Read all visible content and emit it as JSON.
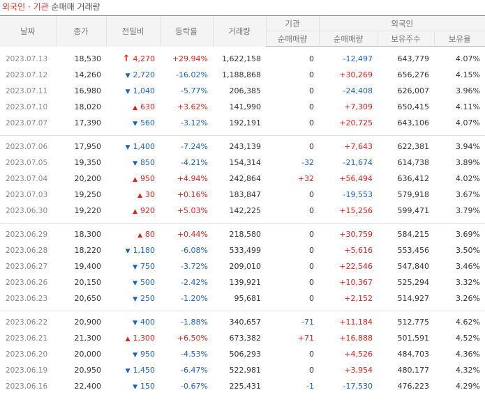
{
  "title": {
    "part1": "외국인",
    "dot": "·",
    "part2": "기관",
    "rest": "순매매 거래량"
  },
  "headers": {
    "date": "날짜",
    "close": "종가",
    "change": "전일비",
    "rate": "등락률",
    "volume": "거래량",
    "inst": "기관",
    "foreign": "외국인",
    "inst_net": "순매매량",
    "foreign_net": "순매매량",
    "foreign_hold": "보유주수",
    "foreign_ratio": "보유율"
  },
  "groups": [
    [
      {
        "date": "2023.07.13",
        "close": "18,530",
        "dir": "upper",
        "chg": "4,270",
        "rate": "+29.94%",
        "vol": "1,622,158",
        "inst": "0",
        "frg": "-12,497",
        "hold": "643,779",
        "ratio": "4.07%"
      },
      {
        "date": "2023.07.12",
        "close": "14,260",
        "dir": "down",
        "chg": "2,720",
        "rate": "-16.02%",
        "vol": "1,188,868",
        "inst": "0",
        "frg": "+30,269",
        "hold": "656,276",
        "ratio": "4.15%"
      },
      {
        "date": "2023.07.11",
        "close": "16,980",
        "dir": "down",
        "chg": "1,040",
        "rate": "-5.77%",
        "vol": "206,385",
        "inst": "0",
        "frg": "-24,408",
        "hold": "626,007",
        "ratio": "3.96%"
      },
      {
        "date": "2023.07.10",
        "close": "18,020",
        "dir": "up",
        "chg": "630",
        "rate": "+3.62%",
        "vol": "141,990",
        "inst": "0",
        "frg": "+7,309",
        "hold": "650,415",
        "ratio": "4.11%"
      },
      {
        "date": "2023.07.07",
        "close": "17,390",
        "dir": "down",
        "chg": "560",
        "rate": "-3.12%",
        "vol": "192,191",
        "inst": "0",
        "frg": "+20,725",
        "hold": "643,106",
        "ratio": "4.07%"
      }
    ],
    [
      {
        "date": "2023.07.06",
        "close": "17,950",
        "dir": "down",
        "chg": "1,400",
        "rate": "-7.24%",
        "vol": "243,139",
        "inst": "0",
        "frg": "+7,643",
        "hold": "622,381",
        "ratio": "3.94%"
      },
      {
        "date": "2023.07.05",
        "close": "19,350",
        "dir": "down",
        "chg": "850",
        "rate": "-4.21%",
        "vol": "154,314",
        "inst": "-32",
        "frg": "-21,674",
        "hold": "614,738",
        "ratio": "3.89%"
      },
      {
        "date": "2023.07.04",
        "close": "20,200",
        "dir": "up",
        "chg": "950",
        "rate": "+4.94%",
        "vol": "242,864",
        "inst": "+32",
        "frg": "+56,494",
        "hold": "636,412",
        "ratio": "4.02%"
      },
      {
        "date": "2023.07.03",
        "close": "19,250",
        "dir": "up",
        "chg": "30",
        "rate": "+0.16%",
        "vol": "183,847",
        "inst": "0",
        "frg": "-19,553",
        "hold": "579,918",
        "ratio": "3.67%"
      },
      {
        "date": "2023.06.30",
        "close": "19,220",
        "dir": "up",
        "chg": "920",
        "rate": "+5.03%",
        "vol": "142,225",
        "inst": "0",
        "frg": "+15,256",
        "hold": "599,471",
        "ratio": "3.79%"
      }
    ],
    [
      {
        "date": "2023.06.29",
        "close": "18,300",
        "dir": "up",
        "chg": "80",
        "rate": "+0.44%",
        "vol": "218,580",
        "inst": "0",
        "frg": "+30,759",
        "hold": "584,215",
        "ratio": "3.69%"
      },
      {
        "date": "2023.06.28",
        "close": "18,220",
        "dir": "down",
        "chg": "1,180",
        "rate": "-6.08%",
        "vol": "533,499",
        "inst": "0",
        "frg": "+5,616",
        "hold": "553,456",
        "ratio": "3.50%"
      },
      {
        "date": "2023.06.27",
        "close": "19,400",
        "dir": "down",
        "chg": "750",
        "rate": "-3.72%",
        "vol": "209,010",
        "inst": "0",
        "frg": "+22,546",
        "hold": "547,840",
        "ratio": "3.46%"
      },
      {
        "date": "2023.06.26",
        "close": "20,150",
        "dir": "down",
        "chg": "500",
        "rate": "-2.42%",
        "vol": "139,921",
        "inst": "0",
        "frg": "+10,367",
        "hold": "525,294",
        "ratio": "3.32%"
      },
      {
        "date": "2023.06.23",
        "close": "20,650",
        "dir": "down",
        "chg": "250",
        "rate": "-1.20%",
        "vol": "95,681",
        "inst": "0",
        "frg": "+2,152",
        "hold": "514,927",
        "ratio": "3.26%"
      }
    ],
    [
      {
        "date": "2023.06.22",
        "close": "20,900",
        "dir": "down",
        "chg": "400",
        "rate": "-1.88%",
        "vol": "340,657",
        "inst": "-71",
        "frg": "+11,184",
        "hold": "512,775",
        "ratio": "4.62%"
      },
      {
        "date": "2023.06.21",
        "close": "21,300",
        "dir": "up",
        "chg": "1,300",
        "rate": "+6.50%",
        "vol": "673,382",
        "inst": "+71",
        "frg": "+16,888",
        "hold": "501,591",
        "ratio": "4.52%"
      },
      {
        "date": "2023.06.20",
        "close": "20,000",
        "dir": "down",
        "chg": "950",
        "rate": "-4.53%",
        "vol": "506,293",
        "inst": "0",
        "frg": "+4,526",
        "hold": "484,703",
        "ratio": "4.36%"
      },
      {
        "date": "2023.06.19",
        "close": "20,950",
        "dir": "down",
        "chg": "1,450",
        "rate": "-6.47%",
        "vol": "522,981",
        "inst": "0",
        "frg": "+3,954",
        "hold": "480,177",
        "ratio": "4.32%"
      },
      {
        "date": "2023.06.16",
        "close": "22,400",
        "dir": "down",
        "chg": "150",
        "rate": "-0.67%",
        "vol": "225,431",
        "inst": "-1",
        "frg": "-17,530",
        "hold": "476,223",
        "ratio": "4.29%"
      }
    ]
  ],
  "colors": {
    "up": "#e1211a",
    "down": "#1a62c7",
    "title_red": "#d9342b"
  },
  "icons": {
    "upper": "upper-limit-arrow-icon",
    "up": "up-triangle-icon",
    "down": "down-triangle-icon"
  }
}
